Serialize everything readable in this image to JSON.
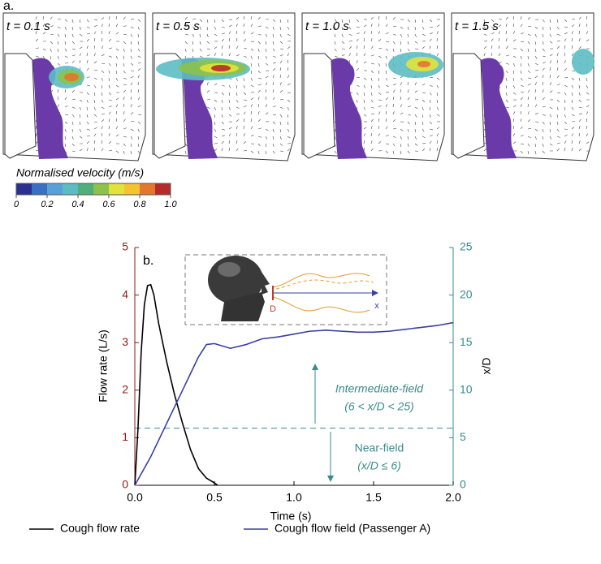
{
  "panel_a": {
    "label": "a.",
    "frames": [
      {
        "label": "t = 0.1 s"
      },
      {
        "label": "t = 0.5 s"
      },
      {
        "label": "t = 1.0 s"
      },
      {
        "label": "t = 1.5 s"
      }
    ],
    "colorbar": {
      "title": "Normalised velocity (m/s)",
      "lim": [
        0,
        1
      ],
      "colors": [
        "#2b2f8f",
        "#3b6fc4",
        "#5aa0d8",
        "#5cbcc4",
        "#4fae7a",
        "#8cc24b",
        "#e2e33a",
        "#f5c330",
        "#e2772d",
        "#b52a2a"
      ],
      "ticks": [
        0,
        0.2,
        0.4,
        0.6,
        0.8,
        {
          "value": 1,
          "label": "1.0"
        }
      ]
    }
  },
  "chart_data": {
    "type": "line",
    "panel_label": "b.",
    "x_label": "Time (s)",
    "y_label": "Flow rate (L/s)",
    "y2_label": "x/D",
    "xlim": [
      0,
      2
    ],
    "xticks": [
      {
        "value": 0,
        "label": "0.0"
      },
      {
        "value": 0.5,
        "label": "0.5"
      },
      {
        "value": 1,
        "label": "1.0"
      },
      {
        "value": 1.5,
        "label": "1.5"
      },
      {
        "value": 2,
        "label": "2.0"
      }
    ],
    "ylim": [
      0,
      5
    ],
    "yticks": [
      0,
      1,
      2,
      3,
      4,
      5
    ],
    "y2lim": [
      0,
      25
    ],
    "y2ticks": [
      0,
      5,
      10,
      15,
      20,
      25
    ],
    "y_axis_color": "#8b1a1a",
    "y2_axis_color": "#3a8a8a",
    "threshold": 6,
    "annotations": {
      "intermediate": [
        "Intermediate-field",
        "(6 < x/D < 25)"
      ],
      "near": [
        "Near-field",
        "(x/D ≤ 6)"
      ]
    },
    "inset_labels": {
      "diameter": "D",
      "axis": "x"
    },
    "series": [
      {
        "name": "Cough flow rate",
        "color": "#000000",
        "x": [
          0,
          0.02,
          0.04,
          0.06,
          0.08,
          0.1,
          0.12,
          0.15,
          0.2,
          0.25,
          0.3,
          0.35,
          0.4,
          0.45,
          0.5,
          0.52
        ],
        "values": [
          0,
          1.2,
          2.8,
          3.8,
          4.2,
          4.22,
          4.0,
          3.4,
          2.6,
          1.9,
          1.3,
          0.75,
          0.35,
          0.15,
          0.05,
          0
        ]
      },
      {
        "name": "Cough flow field (Passenger A)",
        "color": "#3a3fa0",
        "axis": "y2",
        "x": [
          0,
          0.1,
          0.2,
          0.3,
          0.4,
          0.45,
          0.5,
          0.6,
          0.7,
          0.8,
          0.9,
          1.0,
          1.1,
          1.2,
          1.3,
          1.4,
          1.5,
          1.6,
          1.7,
          1.8,
          1.9,
          2.0
        ],
        "values": [
          0,
          3,
          6.5,
          10,
          13.5,
          14.8,
          14.9,
          14.4,
          14.8,
          15.4,
          15.6,
          15.9,
          16.2,
          16.3,
          16.2,
          16.1,
          16.1,
          16.2,
          16.4,
          16.6,
          16.8,
          17.1
        ]
      }
    ]
  }
}
